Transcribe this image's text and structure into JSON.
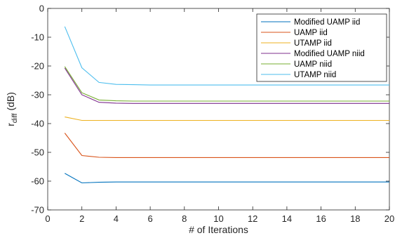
{
  "chart_data": {
    "type": "line",
    "xlabel": "# of Iterations",
    "ylabel_main": "r",
    "ylabel_sub": "diff",
    "ylabel_unit": " (dB)",
    "xlim": [
      0,
      20
    ],
    "ylim": [
      -70,
      0
    ],
    "x_ticks": [
      0,
      2,
      4,
      6,
      8,
      10,
      12,
      14,
      16,
      18,
      20
    ],
    "y_ticks": [
      0,
      -10,
      -20,
      -30,
      -40,
      -50,
      -60,
      -70
    ],
    "grid": false,
    "legend_position": "top-right",
    "x": [
      1,
      2,
      3,
      4,
      5,
      6,
      7,
      8,
      9,
      10,
      11,
      12,
      13,
      14,
      15,
      16,
      17,
      18,
      19,
      20
    ],
    "series": [
      {
        "name": "Modified UAMP iid",
        "color": "#0072bd",
        "values": [
          -57.3,
          -60.6,
          -60.4,
          -60.3,
          -60.3,
          -60.3,
          -60.3,
          -60.3,
          -60.3,
          -60.3,
          -60.3,
          -60.3,
          -60.3,
          -60.3,
          -60.3,
          -60.3,
          -60.3,
          -60.3,
          -60.3,
          -60.3
        ]
      },
      {
        "name": "UAMP iid",
        "color": "#d95319",
        "values": [
          -43.3,
          -51.1,
          -51.7,
          -51.8,
          -51.8,
          -51.8,
          -51.8,
          -51.8,
          -51.8,
          -51.8,
          -51.8,
          -51.8,
          -51.8,
          -51.8,
          -51.8,
          -51.8,
          -51.8,
          -51.8,
          -51.8,
          -51.8
        ]
      },
      {
        "name": "UTAMP iid",
        "color": "#edb120",
        "values": [
          -37.7,
          -38.9,
          -38.9,
          -38.9,
          -38.9,
          -38.9,
          -38.9,
          -38.9,
          -38.9,
          -38.9,
          -38.9,
          -38.9,
          -38.9,
          -38.9,
          -38.9,
          -38.9,
          -38.9,
          -38.9,
          -38.9,
          -38.9
        ]
      },
      {
        "name": "Modified UAMP niid",
        "color": "#7e2f8e",
        "values": [
          -20.7,
          -30.0,
          -32.6,
          -32.9,
          -33.0,
          -33.0,
          -33.0,
          -33.0,
          -33.0,
          -33.0,
          -33.0,
          -33.0,
          -33.0,
          -33.0,
          -33.0,
          -33.0,
          -33.0,
          -33.0,
          -33.0,
          -33.0
        ]
      },
      {
        "name": "UAMP niid",
        "color": "#77ac30",
        "values": [
          -20.2,
          -29.3,
          -31.8,
          -32.1,
          -32.2,
          -32.2,
          -32.2,
          -32.2,
          -32.2,
          -32.2,
          -32.2,
          -32.2,
          -32.2,
          -32.2,
          -32.2,
          -32.2,
          -32.2,
          -32.2,
          -32.2,
          -32.2
        ]
      },
      {
        "name": "UTAMP niid",
        "color": "#4dbeee",
        "values": [
          -6.3,
          -20.6,
          -25.7,
          -26.4,
          -26.5,
          -26.6,
          -26.6,
          -26.6,
          -26.6,
          -26.6,
          -26.6,
          -26.6,
          -26.6,
          -26.6,
          -26.6,
          -26.6,
          -26.6,
          -26.6,
          -26.6,
          -26.6
        ]
      }
    ]
  }
}
